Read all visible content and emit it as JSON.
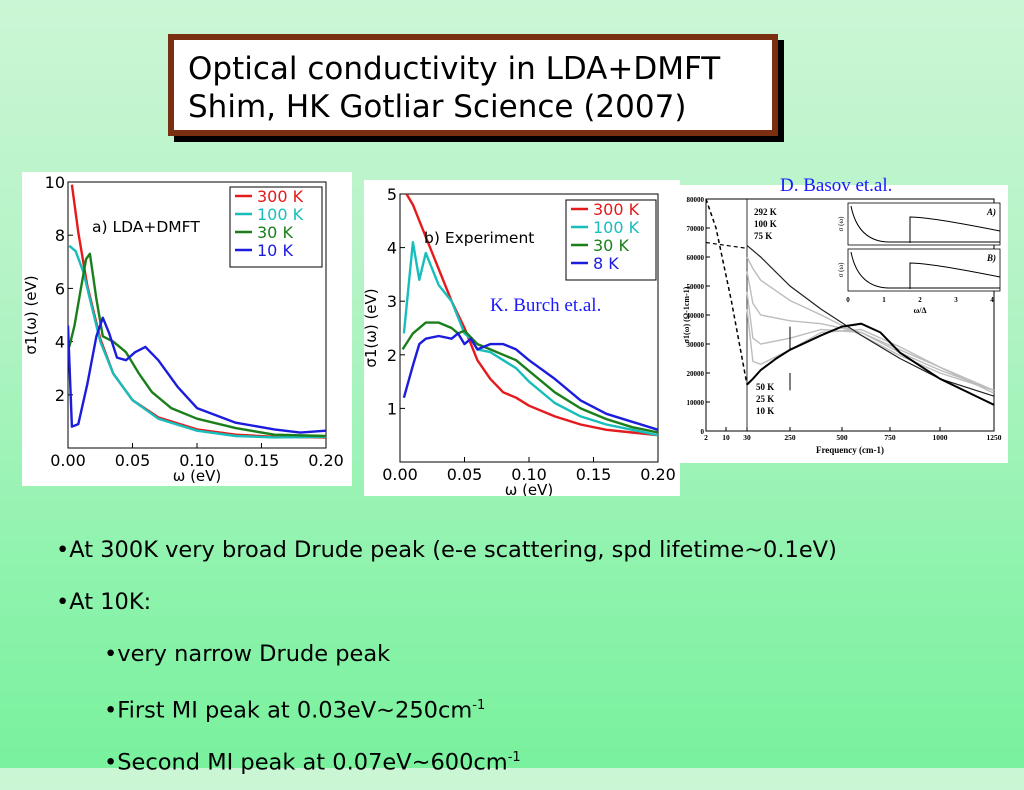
{
  "slide": {
    "title_line1": "Optical conductivity in LDA+DMFT",
    "title_line2": "Shim, HK Gotliar  Science (2007)",
    "credit_basov": "D. Basov et.al.",
    "credit_burch": "K. Burch et.al.",
    "bullets": [
      {
        "text": "•At 300K very broad Drude peak (e-e scattering, spd lifetime~0.1eV)",
        "sup": "",
        "indent": false
      },
      {
        "text": "•At 10K:",
        "sup": "",
        "indent": false
      },
      {
        "text": "•very narrow Drude peak",
        "sup": "",
        "indent": true
      },
      {
        "text": "•First MI peak at 0.03eV~250cm",
        "sup": "-1",
        "indent": true
      },
      {
        "text": "•Second MI peak at 0.07eV~600cm",
        "sup": "-1",
        "indent": true
      }
    ]
  },
  "colors": {
    "red": "#e41a1c",
    "cyan": "#17bebb",
    "green": "#1a7f1a",
    "blue": "#1c1cdc",
    "title_border": "#7a2e12",
    "credit": "#1a1aff"
  },
  "chart_data": [
    {
      "type": "line",
      "panel_label": "a) LDA+DMFT",
      "xlabel": "ω (eV)",
      "ylabel": "σ1(ω) (eV)",
      "xlim": [
        0,
        0.2
      ],
      "ylim": [
        0,
        10
      ],
      "xticks": [
        "0.00",
        "0.05",
        "0.10",
        "0.15",
        "0.20"
      ],
      "yticks": [
        "2",
        "4",
        "6",
        "8",
        "10"
      ],
      "legend": "top-right",
      "series": [
        {
          "name": "300 K",
          "color": "#e41a1c",
          "x": [
            0.003,
            0.008,
            0.015,
            0.025,
            0.035,
            0.05,
            0.07,
            0.1,
            0.13,
            0.16,
            0.2
          ],
          "y": [
            9.9,
            8.1,
            6.1,
            4.1,
            2.8,
            1.8,
            1.15,
            0.7,
            0.5,
            0.42,
            0.4
          ]
        },
        {
          "name": "100 K",
          "color": "#17bebb",
          "x": [
            0.001,
            0.006,
            0.012,
            0.018,
            0.025,
            0.035,
            0.05,
            0.07,
            0.1,
            0.13,
            0.16,
            0.2
          ],
          "y": [
            7.6,
            7.4,
            6.6,
            5.4,
            4.0,
            2.8,
            1.8,
            1.1,
            0.65,
            0.45,
            0.4,
            0.42
          ]
        },
        {
          "name": "30 K",
          "color": "#1a7f1a",
          "x": [
            0.001,
            0.005,
            0.01,
            0.014,
            0.017,
            0.022,
            0.027,
            0.035,
            0.045,
            0.055,
            0.065,
            0.08,
            0.1,
            0.13,
            0.16,
            0.2
          ],
          "y": [
            3.8,
            4.6,
            6.0,
            7.1,
            7.3,
            5.6,
            4.2,
            4.0,
            3.6,
            2.8,
            2.1,
            1.5,
            1.1,
            0.75,
            0.5,
            0.45
          ]
        },
        {
          "name": "10 K",
          "color": "#1c1cdc",
          "x": [
            0.0,
            0.003,
            0.008,
            0.015,
            0.022,
            0.027,
            0.032,
            0.038,
            0.045,
            0.052,
            0.06,
            0.07,
            0.085,
            0.1,
            0.13,
            0.16,
            0.18,
            0.2
          ],
          "y": [
            4.6,
            0.8,
            0.9,
            2.4,
            4.2,
            4.9,
            4.3,
            3.4,
            3.3,
            3.6,
            3.8,
            3.3,
            2.3,
            1.5,
            0.95,
            0.7,
            0.58,
            0.65
          ]
        }
      ]
    },
    {
      "type": "line",
      "panel_label": "b) Experiment",
      "xlabel": "ω (eV)",
      "ylabel": "σ1(ω) (eV)",
      "xlim": [
        0,
        0.2
      ],
      "ylim": [
        0,
        5
      ],
      "xticks": [
        "0.00",
        "0.05",
        "0.10",
        "0.15",
        "0.20"
      ],
      "yticks": [
        "1",
        "2",
        "3",
        "4",
        "5"
      ],
      "legend": "top-right",
      "series": [
        {
          "name": "300 K",
          "color": "#e41a1c",
          "x": [
            0.005,
            0.01,
            0.02,
            0.03,
            0.04,
            0.05,
            0.06,
            0.07,
            0.08,
            0.09,
            0.1,
            0.12,
            0.14,
            0.16,
            0.18,
            0.2
          ],
          "y": [
            5.0,
            4.8,
            4.2,
            3.6,
            3.0,
            2.5,
            1.9,
            1.55,
            1.3,
            1.2,
            1.05,
            0.85,
            0.7,
            0.6,
            0.55,
            0.5
          ]
        },
        {
          "name": "100 K",
          "color": "#17bebb",
          "x": [
            0.003,
            0.01,
            0.015,
            0.02,
            0.03,
            0.04,
            0.05,
            0.055,
            0.06,
            0.07,
            0.08,
            0.09,
            0.1,
            0.12,
            0.14,
            0.16,
            0.18,
            0.2
          ],
          "y": [
            2.4,
            4.1,
            3.4,
            3.9,
            3.3,
            3.0,
            2.4,
            2.3,
            2.1,
            2.05,
            1.9,
            1.75,
            1.5,
            1.1,
            0.85,
            0.7,
            0.6,
            0.5
          ]
        },
        {
          "name": "30 K",
          "color": "#1a7f1a",
          "x": [
            0.002,
            0.01,
            0.02,
            0.03,
            0.04,
            0.045,
            0.05,
            0.06,
            0.07,
            0.08,
            0.09,
            0.1,
            0.12,
            0.14,
            0.16,
            0.18,
            0.2
          ],
          "y": [
            2.1,
            2.4,
            2.6,
            2.6,
            2.5,
            2.4,
            2.45,
            2.2,
            2.1,
            2.0,
            1.9,
            1.7,
            1.3,
            1.0,
            0.8,
            0.65,
            0.55
          ]
        },
        {
          "name": "8 K",
          "color": "#1c1cdc",
          "x": [
            0.003,
            0.01,
            0.015,
            0.02,
            0.03,
            0.04,
            0.045,
            0.05,
            0.055,
            0.06,
            0.07,
            0.08,
            0.09,
            0.1,
            0.12,
            0.14,
            0.16,
            0.18,
            0.2
          ],
          "y": [
            1.2,
            1.8,
            2.2,
            2.3,
            2.35,
            2.3,
            2.4,
            2.2,
            2.3,
            2.1,
            2.2,
            2.2,
            2.1,
            1.9,
            1.55,
            1.15,
            0.9,
            0.75,
            0.6
          ]
        }
      ]
    },
    {
      "type": "line",
      "xlabel": "Frequency (cm-1)",
      "ylabel": "σ1(ω) (Ω-1cm-1)",
      "xticks": [
        "2",
        "10",
        "30",
        "250",
        "500",
        "750",
        "1000",
        "1250"
      ],
      "yticks": [
        "0",
        "10000",
        "20000",
        "30000",
        "40000",
        "50000",
        "60000",
        "70000",
        "80000"
      ],
      "ylim": [
        0,
        80000
      ],
      "legend_upper": [
        "292 K",
        "100 K",
        "75 K"
      ],
      "legend_lower": [
        "50 K",
        "25 K",
        "10 K"
      ],
      "inset_xlabel": "ω/Δ",
      "inset_ylabel": "σ (ω)",
      "inset_labels": [
        "A)",
        "B)"
      ],
      "inset_xticks": [
        "0",
        "1",
        "2",
        "3",
        "4"
      ],
      "series": [
        {
          "name": "292 K",
          "color": "#222222",
          "x": [
            2,
            10,
            30,
            100,
            250,
            400,
            600,
            800,
            1000,
            1250
          ],
          "y": [
            65000,
            64000,
            64000,
            60000,
            50000,
            42000,
            33000,
            25000,
            18000,
            12000
          ]
        },
        {
          "name": "10 K",
          "color": "#000000",
          "x": [
            2,
            10,
            30,
            60,
            100,
            180,
            250,
            400,
            500,
            600,
            700,
            800,
            1000,
            1250
          ],
          "y": [
            80000,
            40000,
            16000,
            18000,
            21000,
            25000,
            28000,
            33000,
            36000,
            37000,
            34000,
            27000,
            18000,
            9000
          ]
        }
      ]
    }
  ]
}
